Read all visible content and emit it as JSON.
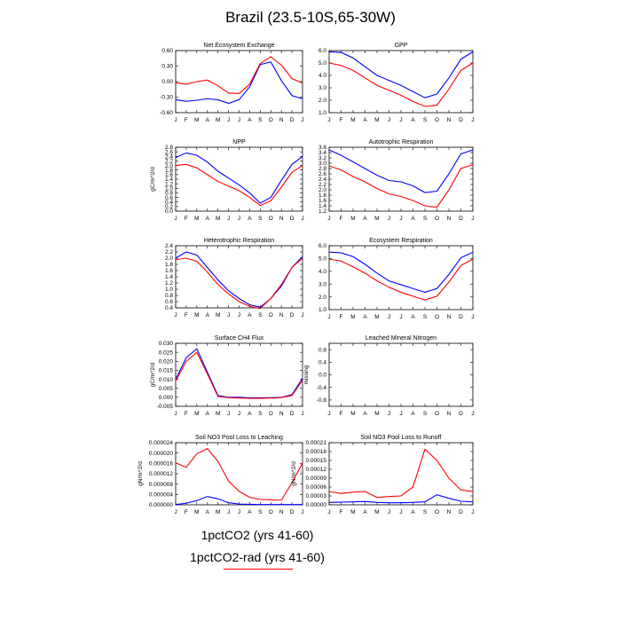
{
  "title": "Brazil (23.5-10S,65-30W)",
  "legend": [
    {
      "label": "1pctCO2 (yrs 41-60)",
      "color": "#0000ff"
    },
    {
      "label": "1pctCO2-rad (yrs 41-60)",
      "color": "#ff0000"
    }
  ],
  "chart_data": [
    {
      "type": "line",
      "title": "Net Ecosystem Exchange",
      "ylabel": "",
      "ylim": [
        -0.6,
        0.6
      ],
      "yticks": [
        "0.60",
        "0.30",
        "0.00",
        "-0.30",
        "-0.60"
      ],
      "x": [
        "J",
        "F",
        "M",
        "A",
        "M",
        "J",
        "J",
        "A",
        "S",
        "O",
        "N",
        "D",
        "J"
      ],
      "series": [
        {
          "color": "#0000ff",
          "values": [
            -0.35,
            -0.38,
            -0.36,
            -0.33,
            -0.35,
            -0.42,
            -0.35,
            -0.1,
            0.33,
            0.38,
            0.02,
            -0.27,
            -0.33
          ]
        },
        {
          "color": "#ff0000",
          "values": [
            -0.02,
            -0.05,
            0.0,
            0.03,
            -0.08,
            -0.22,
            -0.23,
            -0.05,
            0.35,
            0.48,
            0.32,
            0.06,
            -0.03
          ]
        }
      ]
    },
    {
      "type": "line",
      "title": "GPP",
      "ylabel": "",
      "ylim": [
        1.0,
        6.0
      ],
      "yticks": [
        "6.0",
        "5.0",
        "4.0",
        "3.0",
        "2.0",
        "1.0"
      ],
      "x": [
        "J",
        "F",
        "M",
        "A",
        "M",
        "J",
        "J",
        "A",
        "S",
        "O",
        "N",
        "D",
        "J"
      ],
      "series": [
        {
          "color": "#0000ff",
          "values": [
            5.9,
            5.85,
            5.4,
            4.7,
            4.0,
            3.6,
            3.2,
            2.7,
            2.2,
            2.5,
            3.8,
            5.3,
            5.9
          ]
        },
        {
          "color": "#ff0000",
          "values": [
            5.0,
            4.8,
            4.4,
            3.8,
            3.2,
            2.8,
            2.4,
            1.9,
            1.5,
            1.6,
            2.9,
            4.4,
            5.0
          ]
        }
      ]
    },
    {
      "type": "line",
      "title": "NPP",
      "ylabel": "gC/m^2/d",
      "ylim": [
        0.0,
        2.8
      ],
      "yticks": [
        "2.8",
        "2.6",
        "2.4",
        "2.2",
        "2.0",
        "1.8",
        "1.6",
        "1.4",
        "1.2",
        "1.0",
        "0.8",
        "0.6",
        "0.4",
        "0.2",
        "0.0"
      ],
      "x": [
        "J",
        "F",
        "M",
        "A",
        "M",
        "J",
        "J",
        "A",
        "S",
        "O",
        "N",
        "D",
        "J"
      ],
      "series": [
        {
          "color": "#0000ff",
          "values": [
            2.35,
            2.55,
            2.45,
            2.15,
            1.75,
            1.45,
            1.15,
            0.8,
            0.35,
            0.6,
            1.35,
            2.05,
            2.4
          ]
        },
        {
          "color": "#ff0000",
          "values": [
            2.0,
            2.05,
            1.9,
            1.6,
            1.3,
            1.1,
            0.9,
            0.6,
            0.25,
            0.45,
            1.05,
            1.7,
            2.0
          ]
        }
      ]
    },
    {
      "type": "line",
      "title": "Autotrophic Respiration",
      "ylabel": "",
      "ylim": [
        1.2,
        3.6
      ],
      "yticks": [
        "3.6",
        "3.4",
        "3.2",
        "3.0",
        "2.8",
        "2.6",
        "2.4",
        "2.2",
        "2.0",
        "1.8",
        "1.6",
        "1.4",
        "1.2"
      ],
      "x": [
        "J",
        "F",
        "M",
        "A",
        "M",
        "J",
        "J",
        "A",
        "S",
        "O",
        "N",
        "D",
        "J"
      ],
      "series": [
        {
          "color": "#0000ff",
          "values": [
            3.5,
            3.3,
            3.05,
            2.8,
            2.55,
            2.35,
            2.3,
            2.15,
            1.9,
            1.95,
            2.6,
            3.35,
            3.5
          ]
        },
        {
          "color": "#ff0000",
          "values": [
            2.9,
            2.75,
            2.5,
            2.3,
            2.05,
            1.85,
            1.75,
            1.6,
            1.4,
            1.35,
            2.0,
            2.8,
            2.95
          ]
        }
      ]
    },
    {
      "type": "line",
      "title": "Heterotrophic Respiration",
      "ylabel": "",
      "ylim": [
        0.4,
        2.4
      ],
      "yticks": [
        "2.4",
        "2.2",
        "2.0",
        "1.8",
        "1.6",
        "1.4",
        "1.2",
        "1.0",
        "0.8",
        "0.6",
        "0.4"
      ],
      "x": [
        "J",
        "F",
        "M",
        "A",
        "M",
        "J",
        "J",
        "A",
        "S",
        "O",
        "N",
        "D",
        "J"
      ],
      "series": [
        {
          "color": "#0000ff",
          "values": [
            2.0,
            2.2,
            2.1,
            1.7,
            1.3,
            0.95,
            0.7,
            0.5,
            0.42,
            0.7,
            1.1,
            1.7,
            2.05
          ]
        },
        {
          "color": "#ff0000",
          "values": [
            1.95,
            2.0,
            1.9,
            1.55,
            1.15,
            0.85,
            0.6,
            0.45,
            0.38,
            0.7,
            1.15,
            1.7,
            2.0
          ]
        }
      ]
    },
    {
      "type": "line",
      "title": "Ecosystem Respiration",
      "ylabel": "",
      "ylim": [
        1.0,
        6.0
      ],
      "yticks": [
        "6.0",
        "5.0",
        "4.0",
        "3.0",
        "2.0",
        "1.0"
      ],
      "x": [
        "J",
        "F",
        "M",
        "A",
        "M",
        "J",
        "J",
        "A",
        "S",
        "O",
        "N",
        "D",
        "J"
      ],
      "series": [
        {
          "color": "#0000ff",
          "values": [
            5.5,
            5.45,
            5.15,
            4.55,
            3.85,
            3.25,
            2.95,
            2.65,
            2.35,
            2.65,
            3.75,
            5.05,
            5.5
          ]
        },
        {
          "color": "#ff0000",
          "values": [
            4.95,
            4.8,
            4.35,
            3.85,
            3.25,
            2.75,
            2.35,
            2.05,
            1.75,
            2.05,
            3.15,
            4.45,
            4.95
          ]
        }
      ]
    },
    {
      "type": "line",
      "title": "Surface CH4 Flux",
      "ylabel": "gC/m^2/d",
      "ylim": [
        -0.005,
        0.03
      ],
      "yticks": [
        "0.030",
        "0.025",
        "0.020",
        "0.015",
        "0.010",
        "0.005",
        "0.000",
        "-0.005"
      ],
      "x": [
        "J",
        "F",
        "M",
        "A",
        "M",
        "J",
        "J",
        "A",
        "S",
        "O",
        "N",
        "D",
        "J"
      ],
      "series": [
        {
          "color": "#0000ff",
          "values": [
            0.01,
            0.022,
            0.027,
            0.014,
            0.001,
            0.0,
            0.0,
            -0.0003,
            -0.0003,
            -0.0002,
            0.0,
            0.0015,
            0.0105
          ]
        },
        {
          "color": "#ff0000",
          "values": [
            0.009,
            0.02,
            0.025,
            0.013,
            0.0005,
            -0.0002,
            -0.0004,
            -0.0006,
            -0.0006,
            -0.0004,
            -0.0001,
            0.001,
            0.0095
          ]
        }
      ]
    },
    {
      "type": "line",
      "title": "Leached Mineral Nitrogen",
      "ylabel": "missing",
      "ylim": [
        -1.0,
        1.0
      ],
      "yticks": [
        "0.8",
        "0.4",
        "0.0",
        "-0.4",
        "-0.8"
      ],
      "x": [
        "J",
        "F",
        "M",
        "A",
        "M",
        "J",
        "J",
        "A",
        "S",
        "O",
        "N",
        "D",
        "J"
      ],
      "series": []
    },
    {
      "type": "line",
      "title": "Soil NO3 Pool Loss to Leaching",
      "ylabel": "gN/m^2/d",
      "ylim": [
        0.0,
        2.4e-05
      ],
      "yticks": [
        "0.000024",
        "0.000020",
        "0.000016",
        "0.000012",
        "0.000008",
        "0.000004",
        "0.000000"
      ],
      "x": [
        "J",
        "F",
        "M",
        "A",
        "M",
        "J",
        "J",
        "A",
        "S",
        "O",
        "N",
        "D",
        "J"
      ],
      "series": [
        {
          "color": "#0000ff",
          "values": [
            1e-07,
            6e-07,
            1.6e-06,
            3.2e-06,
            2.3e-06,
            8e-07,
            3e-07,
            2e-07,
            1e-07,
            1e-07,
            1e-07,
            1e-07,
            1e-07
          ]
        },
        {
          "color": "#ff0000",
          "values": [
            1.62e-05,
            1.45e-05,
            1.97e-05,
            2.17e-05,
            1.68e-05,
            9.2e-06,
            5.2e-06,
            2.9e-06,
            2.1e-06,
            1.9e-06,
            1.8e-06,
            8.5e-06,
            1.62e-05
          ]
        }
      ]
    },
    {
      "type": "line",
      "title": "Soil NO3 Pool Loss to Runoff",
      "ylabel": "gN/m^2/d",
      "ylim": [
        0.0,
        0.00021
      ],
      "yticks": [
        "0.00021",
        "0.00018",
        "0.00015",
        "0.00012",
        "0.00009",
        "0.00006",
        "0.00003",
        "0.00000"
      ],
      "x": [
        "J",
        "F",
        "M",
        "A",
        "M",
        "J",
        "J",
        "A",
        "S",
        "O",
        "N",
        "D",
        "J"
      ],
      "series": [
        {
          "color": "#0000ff",
          "values": [
            8e-06,
            9e-06,
            1e-05,
            1.1e-05,
            8e-06,
            7e-06,
            7e-06,
            8e-06,
            1e-05,
            3.4e-05,
            2.2e-05,
            1.2e-05,
            1e-05
          ]
        },
        {
          "color": "#ff0000",
          "values": [
            4.5e-05,
            3.8e-05,
            4.3e-05,
            4.5e-05,
            2.5e-05,
            2.8e-05,
            3e-05,
            6e-05,
            0.000188,
            0.00015,
            9e-05,
            5e-05,
            4.5e-05
          ]
        }
      ]
    }
  ]
}
